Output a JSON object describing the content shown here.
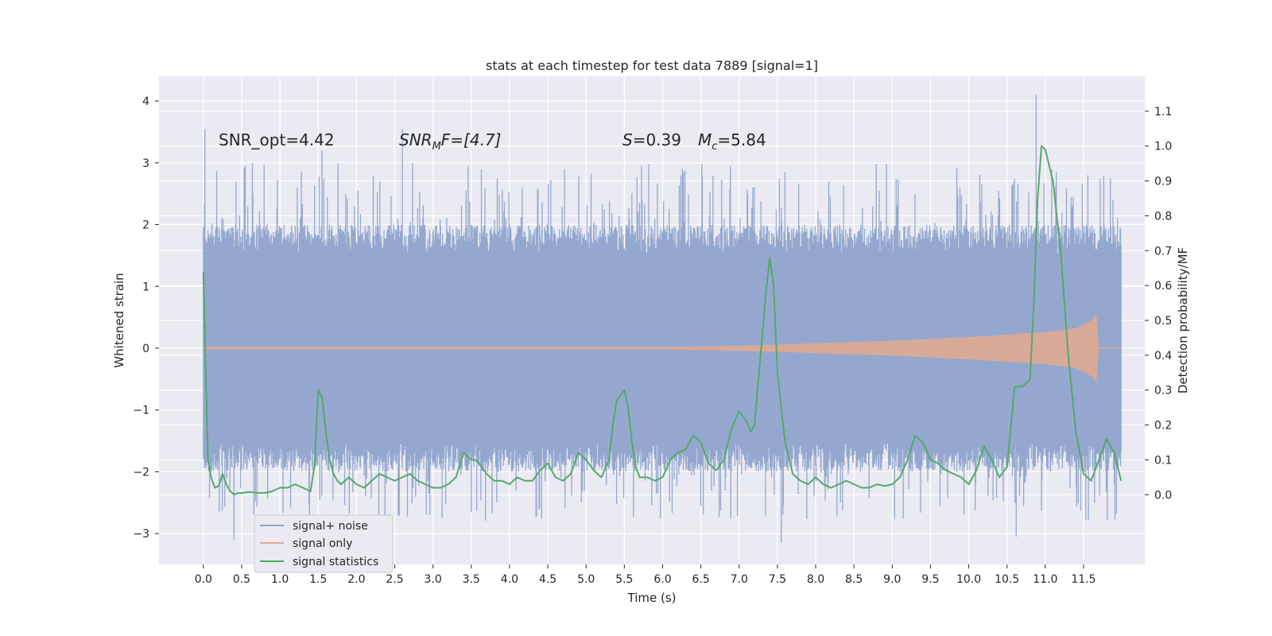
{
  "chart_data": {
    "type": "line",
    "title": "stats at each timestep for test data 7889 [signal=1]",
    "xlabel": "Time (s)",
    "ylabel_left": "Whitened strain",
    "ylabel_right": "Detection probability/MF",
    "xlim": [
      -0.58,
      12.3
    ],
    "ylim_left": [
      -3.5,
      4.4
    ],
    "ylim_right": [
      -0.2,
      1.2
    ],
    "x_ticks": [
      0.0,
      0.5,
      1.0,
      1.5,
      2.0,
      2.5,
      3.0,
      3.5,
      4.0,
      4.5,
      5.0,
      5.5,
      6.0,
      6.5,
      7.0,
      7.5,
      8.0,
      8.5,
      9.0,
      9.5,
      10.0,
      10.5,
      11.0,
      11.5
    ],
    "x_tick_labels": [
      "0.0",
      "0.5",
      "1.0",
      "1.5",
      "2.0",
      "2.5",
      "3.0",
      "3.5",
      "4.0",
      "4.5",
      "5.0",
      "5.5",
      "6.0",
      "6.5",
      "7.0",
      "7.5",
      "8.0",
      "8.5",
      "9.0",
      "9.5",
      "10.0",
      "10.5",
      "11.0",
      "11.5"
    ],
    "y_left_ticks": [
      -3,
      -2,
      -1,
      0,
      1,
      2,
      3,
      4
    ],
    "y_left_tick_labels": [
      "−3",
      "−2",
      "−1",
      "0",
      "1",
      "2",
      "3",
      "4"
    ],
    "y_right_ticks": [
      0.0,
      0.1,
      0.2,
      0.3,
      0.4,
      0.5,
      0.6,
      0.7,
      0.8,
      0.9,
      1.0,
      1.1
    ],
    "y_right_tick_labels": [
      "0.0",
      "0.1",
      "0.2",
      "0.3",
      "0.4",
      "0.5",
      "0.6",
      "0.7",
      "0.8",
      "0.9",
      "1.0",
      "1.1"
    ],
    "grid": true,
    "legend_position": "lower-left",
    "series": [
      {
        "name": "signal+ noise",
        "axis": "left",
        "color": "#8fa4cc",
        "t_range": [
          0.0,
          11.99
        ],
        "typical_range": [
          -1.6,
          1.6
        ],
        "peak_max": 4.1,
        "peak_min": -3.15
      },
      {
        "name": "signal only",
        "axis": "left",
        "color": "#e0a890",
        "t_range": [
          0.0,
          11.99
        ],
        "envelope": [
          [
            0.0,
            0.02
          ],
          [
            6.0,
            0.02
          ],
          [
            7.0,
            0.04
          ],
          [
            8.0,
            0.08
          ],
          [
            9.0,
            0.12
          ],
          [
            10.0,
            0.18
          ],
          [
            10.5,
            0.22
          ],
          [
            11.0,
            0.26
          ],
          [
            11.4,
            0.32
          ],
          [
            11.6,
            0.45
          ],
          [
            11.67,
            0.55
          ],
          [
            11.7,
            0.0
          ],
          [
            11.99,
            0.0
          ]
        ]
      },
      {
        "name": "signal statistics",
        "axis": "right",
        "color": "#55a868",
        "x": [
          0.0,
          0.03,
          0.06,
          0.1,
          0.15,
          0.2,
          0.25,
          0.3,
          0.35,
          0.4,
          0.45,
          0.5,
          0.6,
          0.7,
          0.8,
          0.9,
          1.0,
          1.1,
          1.2,
          1.3,
          1.4,
          1.45,
          1.5,
          1.55,
          1.6,
          1.65,
          1.7,
          1.75,
          1.8,
          1.9,
          2.0,
          2.1,
          2.2,
          2.3,
          2.4,
          2.5,
          2.6,
          2.7,
          2.8,
          2.9,
          3.0,
          3.1,
          3.2,
          3.3,
          3.4,
          3.5,
          3.55,
          3.6,
          3.7,
          3.8,
          3.9,
          4.0,
          4.1,
          4.2,
          4.3,
          4.4,
          4.5,
          4.6,
          4.7,
          4.8,
          4.9,
          5.0,
          5.1,
          5.2,
          5.3,
          5.35,
          5.4,
          5.5,
          5.55,
          5.6,
          5.65,
          5.7,
          5.8,
          5.9,
          6.0,
          6.1,
          6.2,
          6.3,
          6.4,
          6.5,
          6.6,
          6.7,
          6.8,
          6.9,
          7.0,
          7.1,
          7.15,
          7.2,
          7.3,
          7.35,
          7.4,
          7.45,
          7.5,
          7.6,
          7.7,
          7.8,
          7.9,
          8.0,
          8.1,
          8.2,
          8.3,
          8.4,
          8.5,
          8.6,
          8.7,
          8.8,
          8.9,
          9.0,
          9.1,
          9.2,
          9.3,
          9.4,
          9.5,
          9.6,
          9.7,
          9.8,
          9.9,
          10.0,
          10.1,
          10.2,
          10.3,
          10.4,
          10.5,
          10.6,
          10.7,
          10.8,
          10.85,
          10.9,
          10.95,
          11.0,
          11.1,
          11.2,
          11.3,
          11.4,
          11.5,
          11.6,
          11.7,
          11.8,
          11.9,
          11.99
        ],
        "values": [
          0.64,
          0.35,
          0.1,
          0.05,
          0.02,
          0.025,
          0.06,
          0.03,
          0.01,
          0.0,
          0.005,
          0.005,
          0.008,
          0.005,
          0.005,
          0.01,
          0.02,
          0.02,
          0.03,
          0.02,
          0.01,
          0.08,
          0.3,
          0.28,
          0.18,
          0.1,
          0.06,
          0.04,
          0.03,
          0.05,
          0.03,
          0.02,
          0.04,
          0.06,
          0.05,
          0.04,
          0.05,
          0.06,
          0.04,
          0.03,
          0.02,
          0.02,
          0.03,
          0.05,
          0.12,
          0.1,
          0.1,
          0.09,
          0.06,
          0.04,
          0.04,
          0.03,
          0.05,
          0.04,
          0.04,
          0.07,
          0.09,
          0.05,
          0.04,
          0.06,
          0.12,
          0.1,
          0.07,
          0.05,
          0.1,
          0.2,
          0.27,
          0.3,
          0.25,
          0.15,
          0.08,
          0.05,
          0.05,
          0.04,
          0.05,
          0.1,
          0.12,
          0.13,
          0.17,
          0.15,
          0.09,
          0.07,
          0.1,
          0.19,
          0.24,
          0.21,
          0.18,
          0.2,
          0.45,
          0.58,
          0.68,
          0.6,
          0.35,
          0.15,
          0.06,
          0.04,
          0.03,
          0.05,
          0.03,
          0.02,
          0.03,
          0.04,
          0.03,
          0.02,
          0.02,
          0.03,
          0.025,
          0.03,
          0.05,
          0.1,
          0.17,
          0.15,
          0.1,
          0.09,
          0.07,
          0.06,
          0.05,
          0.03,
          0.07,
          0.14,
          0.1,
          0.05,
          0.08,
          0.31,
          0.31,
          0.33,
          0.55,
          0.85,
          1.0,
          0.99,
          0.9,
          0.7,
          0.4,
          0.18,
          0.06,
          0.04,
          0.1,
          0.16,
          0.12,
          0.04
        ]
      }
    ],
    "annotations": {
      "snr_opt": "SNR_opt=4.42",
      "snr_mf_base": "SNR",
      "snr_mf_sub": "M",
      "snr_mf_rest": "F=[4.7]",
      "s_symbol": "S",
      "s_value": "=0.39",
      "mc_symbol": "M",
      "mc_sub": "c",
      "mc_value": "=5.84"
    }
  }
}
